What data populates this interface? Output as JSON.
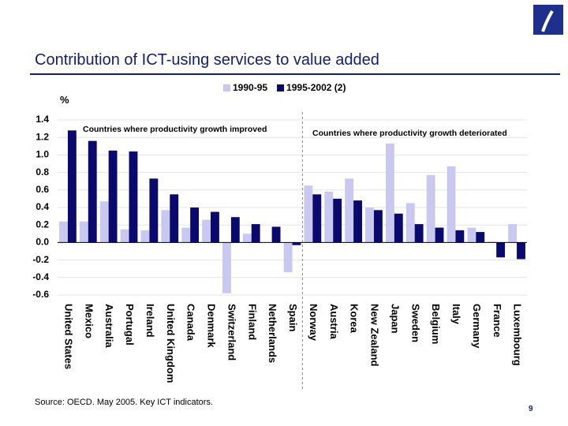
{
  "chart_data": {
    "type": "bar",
    "title": "Contribution of ICT-using services to value added",
    "y_label": "%",
    "annotations": [
      "Countries where productivity growth improved",
      "Countries where productivity growth deteriorated"
    ],
    "source": "Source: OECD. May 2005.  Key ICT indicators.",
    "page_number": "9",
    "categories": [
      "United States",
      "Mexico",
      "Australia",
      "Portugal",
      "Ireland",
      "United Kingdom",
      "Canada",
      "Denmark",
      "Switzerland",
      "Finland",
      "Netherlands",
      "Spain",
      "Norway",
      "Austria",
      "Korea",
      "New Zealand",
      "Japan",
      "Sweden",
      "Belgium",
      "Italy",
      "Germany",
      "France",
      "Luxembourg"
    ],
    "series": [
      {
        "name": "1990-95",
        "color": "#c8c8f0",
        "values": [
          0.24,
          0.24,
          0.47,
          0.15,
          0.14,
          0.37,
          0.17,
          0.26,
          -0.58,
          0.1,
          0.0,
          -0.34,
          0.65,
          0.58,
          0.73,
          0.4,
          1.13,
          0.45,
          0.77,
          0.87,
          0.17,
          0.01,
          0.21
        ]
      },
      {
        "name": "1995-2002 (2)",
        "color": "#0a0a6e",
        "values": [
          1.28,
          1.16,
          1.05,
          1.04,
          0.73,
          0.55,
          0.4,
          0.35,
          0.29,
          0.21,
          0.18,
          -0.03,
          0.55,
          0.5,
          0.48,
          0.37,
          0.33,
          0.21,
          0.17,
          0.14,
          0.12,
          -0.17,
          -0.19
        ]
      }
    ],
    "ylim": [
      -0.6,
      1.4
    ],
    "yticks": [
      1.4,
      1.2,
      {
        "value": 1,
        "label": "1.0"
      },
      0.8,
      0.6,
      0.4,
      0.2,
      {
        "value": 0,
        "label": "0.0"
      },
      -0.2,
      -0.4,
      -0.6
    ],
    "grid": true,
    "legend": "top"
  }
}
